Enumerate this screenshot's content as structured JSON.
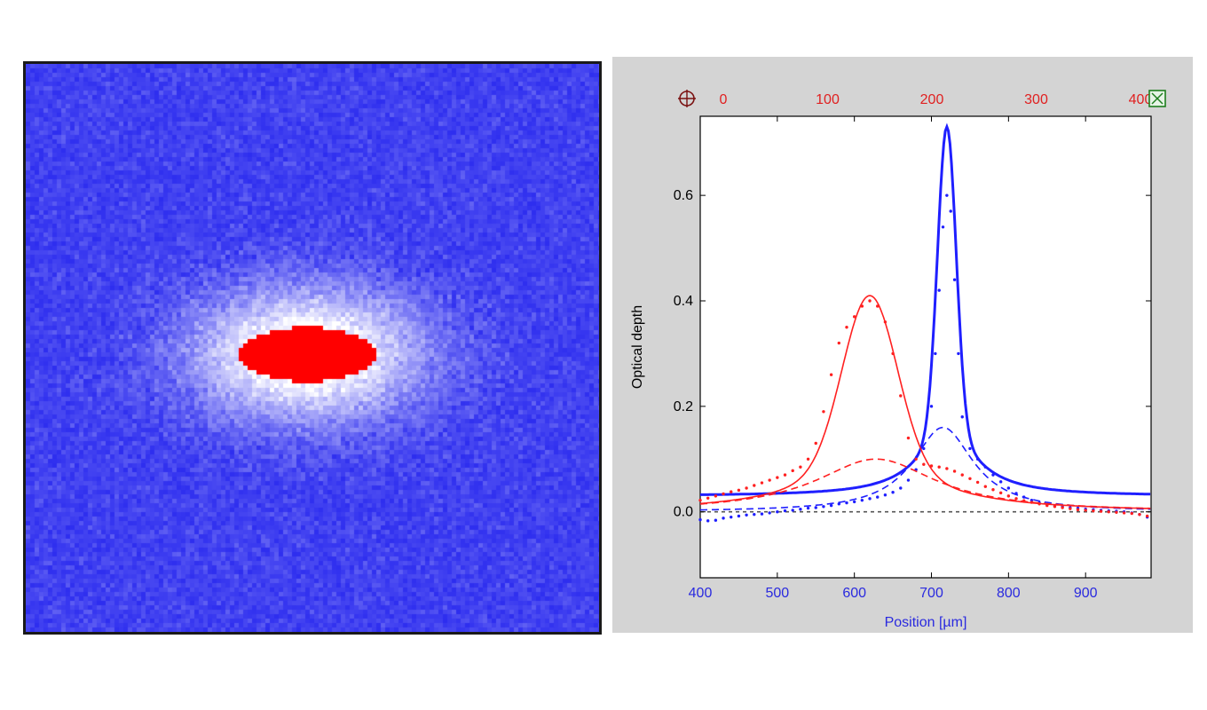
{
  "image_panel": {
    "colors": {
      "background": "#2020ee",
      "saturated_core": "#ff0000",
      "halo": "#ffffff"
    }
  },
  "chart_data": {
    "type": "line",
    "title": "",
    "xlabel": "Position [µm]",
    "ylabel": "Optical depth",
    "xlim": [
      400,
      985
    ],
    "ylim": [
      -0.125,
      0.75
    ],
    "xticks": [
      400,
      500,
      600,
      700,
      800,
      900
    ],
    "yticks": [
      0.0,
      0.2,
      0.4,
      0.6
    ],
    "top_axis": {
      "xlim": [
        0,
        400
      ],
      "ticks": [
        0,
        100,
        200,
        300,
        400
      ],
      "color": "#e02020"
    },
    "baseline": {
      "y": 0.0,
      "style": "dotted",
      "color": "#555555"
    },
    "series": [
      {
        "kind": "fit",
        "color": "#1f1fff",
        "params": {
          "offset": 0.03,
          "center": 720,
          "peak": 0.575,
          "sigma": 12,
          "wing_amp": 0.125,
          "wing_width": 45,
          "baseline": 0.03
        }
      },
      {
        "kind": "wing_fit",
        "style": "dashed",
        "color": "#1f1fff",
        "params": {
          "center": 715,
          "amp": 0.16,
          "width": 48
        }
      },
      {
        "kind": "points",
        "color": "#1f1fff",
        "x": [
          400,
          410,
          420,
          430,
          440,
          450,
          460,
          470,
          480,
          490,
          500,
          510,
          520,
          530,
          540,
          550,
          560,
          570,
          580,
          590,
          600,
          610,
          620,
          630,
          640,
          650,
          660,
          670,
          680,
          690,
          700,
          705,
          710,
          715,
          720,
          725,
          730,
          735,
          740,
          750,
          760,
          770,
          780,
          790,
          800,
          810,
          820,
          830,
          840,
          850,
          860,
          870,
          880,
          890,
          900,
          910,
          920,
          930,
          940,
          950,
          960,
          970,
          980
        ],
        "y": [
          -0.015,
          -0.017,
          -0.016,
          -0.012,
          -0.01,
          -0.008,
          -0.006,
          -0.005,
          -0.004,
          -0.002,
          0.0,
          0.002,
          0.003,
          0.005,
          0.007,
          0.008,
          0.01,
          0.012,
          0.015,
          0.017,
          0.019,
          0.022,
          0.025,
          0.028,
          0.032,
          0.037,
          0.045,
          0.06,
          0.08,
          0.12,
          0.2,
          0.3,
          0.42,
          0.54,
          0.6,
          0.57,
          0.44,
          0.3,
          0.18,
          0.12,
          0.1,
          0.085,
          0.07,
          0.057,
          0.045,
          0.035,
          0.028,
          0.022,
          0.017,
          0.014,
          0.012,
          0.01,
          0.008,
          0.007,
          0.005,
          0.004,
          0.003,
          0.002,
          0.001,
          0.0,
          -0.002,
          -0.005,
          -0.01
        ]
      },
      {
        "kind": "fit",
        "color": "#ff2020",
        "params": {
          "offset": 0.0,
          "center": 620,
          "peak": 0.31,
          "sigma": 35,
          "wing_amp": 0.1,
          "wing_width": 95,
          "baseline": 0.0
        }
      },
      {
        "kind": "wing_fit",
        "style": "dashed",
        "color": "#ff2020",
        "params": {
          "center": 628,
          "amp": 0.1,
          "width": 95
        }
      },
      {
        "kind": "points",
        "color": "#ff2020",
        "x": [
          400,
          410,
          420,
          430,
          440,
          450,
          460,
          470,
          480,
          490,
          500,
          510,
          520,
          530,
          540,
          550,
          560,
          570,
          580,
          590,
          600,
          610,
          620,
          630,
          640,
          650,
          660,
          670,
          680,
          690,
          700,
          710,
          720,
          730,
          740,
          750,
          760,
          770,
          780,
          790,
          800,
          810,
          820,
          830,
          840,
          850,
          860,
          870,
          880,
          890,
          900,
          910,
          920,
          930,
          940,
          950,
          960,
          970,
          980
        ],
        "y": [
          0.022,
          0.026,
          0.03,
          0.034,
          0.038,
          0.041,
          0.045,
          0.05,
          0.055,
          0.06,
          0.065,
          0.07,
          0.078,
          0.085,
          0.1,
          0.13,
          0.19,
          0.26,
          0.32,
          0.35,
          0.37,
          0.39,
          0.4,
          0.39,
          0.36,
          0.3,
          0.22,
          0.14,
          0.1,
          0.09,
          0.087,
          0.085,
          0.082,
          0.077,
          0.07,
          0.063,
          0.056,
          0.048,
          0.042,
          0.036,
          0.03,
          0.025,
          0.021,
          0.018,
          0.015,
          0.012,
          0.01,
          0.008,
          0.006,
          0.004,
          0.003,
          0.002,
          0.001,
          0.0,
          -0.001,
          -0.002,
          -0.003,
          -0.005,
          -0.008
        ]
      }
    ]
  },
  "colors": {
    "plot_panel_bg": "#d4d4d4",
    "plot_area_bg": "#ffffff",
    "left_axis_text": "#000000",
    "bottom_axis_text": "#2a2adf",
    "zoom_icon": "#7a1010",
    "close_icon": "#1e7e1e"
  }
}
